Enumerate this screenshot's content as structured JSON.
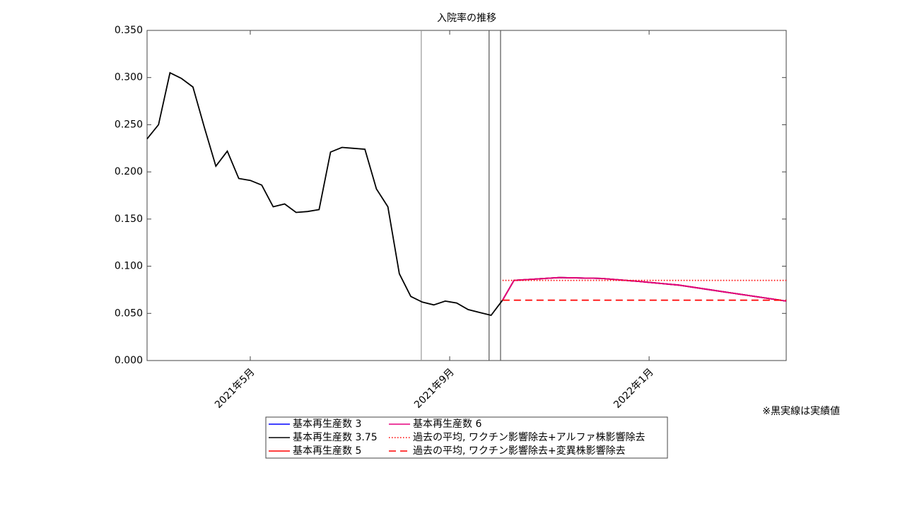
{
  "chart_data": {
    "type": "line",
    "title": "入院率の推移",
    "annotation": "※黒実線は実績値",
    "xlim": [
      1.93,
      14.75
    ],
    "xticks": [
      {
        "value": 4,
        "label": "2021年5月"
      },
      {
        "value": 8,
        "label": "2021年9月"
      },
      {
        "value": 12,
        "label": "2022年1月"
      }
    ],
    "ylim": [
      0,
      0.35
    ],
    "yticks": [
      {
        "value": 0,
        "label": "0.000"
      },
      {
        "value": 0.05,
        "label": "0.050"
      },
      {
        "value": 0.1,
        "label": "0.100"
      },
      {
        "value": 0.15,
        "label": "0.150"
      },
      {
        "value": 0.2,
        "label": "0.200"
      },
      {
        "value": 0.25,
        "label": "0.250"
      },
      {
        "value": 0.3,
        "label": "0.300"
      },
      {
        "value": 0.35,
        "label": "0.350"
      }
    ],
    "vlines": [
      {
        "x": 7.43,
        "color": "#999999"
      },
      {
        "x": 8.79,
        "color": "#555555"
      },
      {
        "x": 9.02,
        "color": "#555555"
      }
    ],
    "actual": {
      "color": "#000000",
      "x": [
        1.93,
        2.16,
        2.39,
        2.62,
        2.85,
        3.08,
        3.31,
        3.54,
        3.77,
        4.0,
        4.23,
        4.46,
        4.69,
        4.92,
        5.15,
        5.38,
        5.61,
        5.84,
        6.07,
        6.3,
        6.53,
        6.76,
        6.99,
        7.22,
        7.45,
        7.68,
        7.91,
        8.14,
        8.37,
        8.6,
        8.83,
        9.06
      ],
      "values": [
        0.235,
        0.25,
        0.305,
        0.299,
        0.29,
        0.247,
        0.206,
        0.222,
        0.193,
        0.191,
        0.186,
        0.163,
        0.166,
        0.157,
        0.158,
        0.16,
        0.221,
        0.226,
        0.225,
        0.224,
        0.182,
        0.163,
        0.092,
        0.068,
        0.062,
        0.059,
        0.063,
        0.061,
        0.054,
        0.051,
        0.048,
        0.064
      ]
    },
    "series": [
      {
        "name": "基本再生産数 3",
        "color": "#0000ff",
        "dash": "solid",
        "x": [
          9.06,
          9.29,
          10.2,
          11.05,
          11.76,
          12.6,
          13.6,
          14.75
        ],
        "values": [
          0.064,
          0.085,
          0.088,
          0.087,
          0.084,
          0.08,
          0.072,
          0.063
        ]
      },
      {
        "name": "基本再生産数 3.75",
        "color": "#000000",
        "dash": "solid",
        "x": [
          9.06,
          9.29,
          10.2,
          11.05,
          11.76,
          12.6,
          13.6,
          14.75
        ],
        "values": [
          0.064,
          0.085,
          0.088,
          0.087,
          0.084,
          0.08,
          0.072,
          0.063
        ]
      },
      {
        "name": "基本再生産数 5",
        "color": "#ff0000",
        "dash": "solid",
        "x": [
          9.06,
          9.29,
          10.2,
          11.05,
          11.76,
          12.6,
          13.6,
          14.75
        ],
        "values": [
          0.064,
          0.085,
          0.088,
          0.087,
          0.084,
          0.08,
          0.072,
          0.063
        ]
      },
      {
        "name": "基本再生産数 6",
        "color": "#e6007e",
        "dash": "solid",
        "x": [
          9.06,
          9.29,
          10.2,
          11.05,
          11.76,
          12.6,
          13.6,
          14.75
        ],
        "values": [
          0.064,
          0.085,
          0.088,
          0.087,
          0.084,
          0.08,
          0.072,
          0.063
        ]
      },
      {
        "name": "過去の平均, ワクチン影響除去+アルファ株影響除去",
        "color": "#ff0000",
        "dash": "dotted",
        "x": [
          9.06,
          14.75
        ],
        "values": [
          0.085,
          0.085
        ]
      },
      {
        "name": "過去の平均, ワクチン影響除去+変異株影響除去",
        "color": "#ff0000",
        "dash": "dashed",
        "x": [
          9.06,
          14.75
        ],
        "values": [
          0.064,
          0.064
        ]
      }
    ]
  }
}
